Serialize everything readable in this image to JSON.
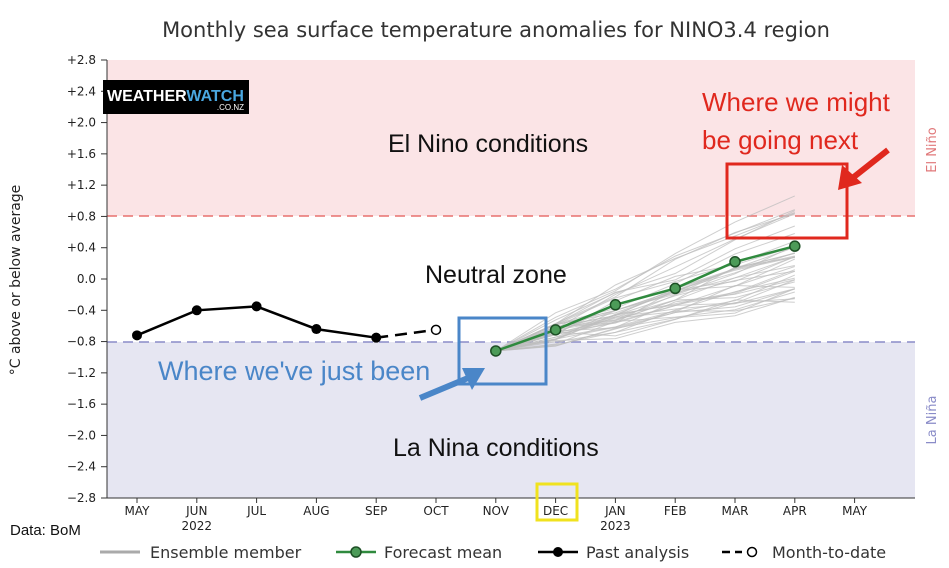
{
  "chart_data": {
    "type": "line",
    "title": "Monthly sea surface temperature anomalies for NINO3.4 region",
    "ylabel": "°C above or below average",
    "ylim": [
      -2.8,
      2.8
    ],
    "yticks": [
      "+2.8",
      "+2.4",
      "+2.0",
      "+1.6",
      "+1.2",
      "+0.8",
      "+0.4",
      "0.0",
      "−0.4",
      "−0.8",
      "−1.2",
      "−1.6",
      "−2.0",
      "−2.4",
      "−2.8"
    ],
    "x_categories": [
      "MAY",
      "JUN",
      "JUL",
      "AUG",
      "SEP",
      "OCT",
      "NOV",
      "DEC",
      "JAN",
      "FEB",
      "MAR",
      "APR",
      "MAY"
    ],
    "year_labels": [
      {
        "category_index": 1,
        "text": "2022"
      },
      {
        "category_index": 8,
        "text": "2023"
      }
    ],
    "thresholds": {
      "el_nino": 0.8,
      "la_nina": -0.8
    },
    "zone_labels": {
      "el_nino_side": "El Niño",
      "la_nina_side": "La Niña"
    },
    "series": [
      {
        "name": "Past analysis",
        "style": "solid",
        "color": "#000000",
        "points": [
          [
            0,
            -0.72
          ],
          [
            1,
            -0.4
          ],
          [
            2,
            -0.35
          ],
          [
            3,
            -0.64
          ],
          [
            4,
            -0.75
          ]
        ]
      },
      {
        "name": "Month-to-date",
        "style": "dashed",
        "color": "#000000",
        "points": [
          [
            4,
            -0.75
          ],
          [
            5,
            -0.65
          ]
        ]
      },
      {
        "name": "Forecast mean",
        "style": "solid",
        "color": "#2f8a3e",
        "points": [
          [
            6,
            -0.92
          ],
          [
            7,
            -0.65
          ],
          [
            8,
            -0.33
          ],
          [
            9,
            -0.12
          ],
          [
            10,
            0.22
          ],
          [
            11,
            0.42
          ]
        ]
      }
    ],
    "ensemble": {
      "name": "Ensemble member",
      "members": 40,
      "x_start": 6,
      "x_end": 11,
      "start_value": -0.92,
      "end_range": [
        -0.3,
        1.1
      ]
    },
    "legend": {
      "placement": "bottom",
      "entries": [
        "Ensemble member",
        "Forecast mean",
        "Past analysis",
        "Month-to-date"
      ]
    }
  },
  "annotations": {
    "el_nino": "El Nino conditions",
    "neutral": "Neutral zone",
    "la_nina": "La Nina conditions",
    "going_line1": "Where we might",
    "going_line2": "be going next",
    "been": "Where we've just been"
  },
  "logo": {
    "text_a": "WEATHER",
    "text_b": "WATCH",
    "sub": ".CO.NZ"
  },
  "credit": "Data: BoM",
  "colors": {
    "el_nino_band": "#fbe4e6",
    "neutral_band": "#ffffff",
    "la_nina_band": "#e6e6f2",
    "red_threshold": "#e8706f",
    "blue_threshold": "#8a8cc8",
    "forecast": "#2f8a3e",
    "highlight_red": "#e0281e",
    "highlight_blue": "#4a86c8",
    "highlight_yellow": "#f0e21e"
  }
}
